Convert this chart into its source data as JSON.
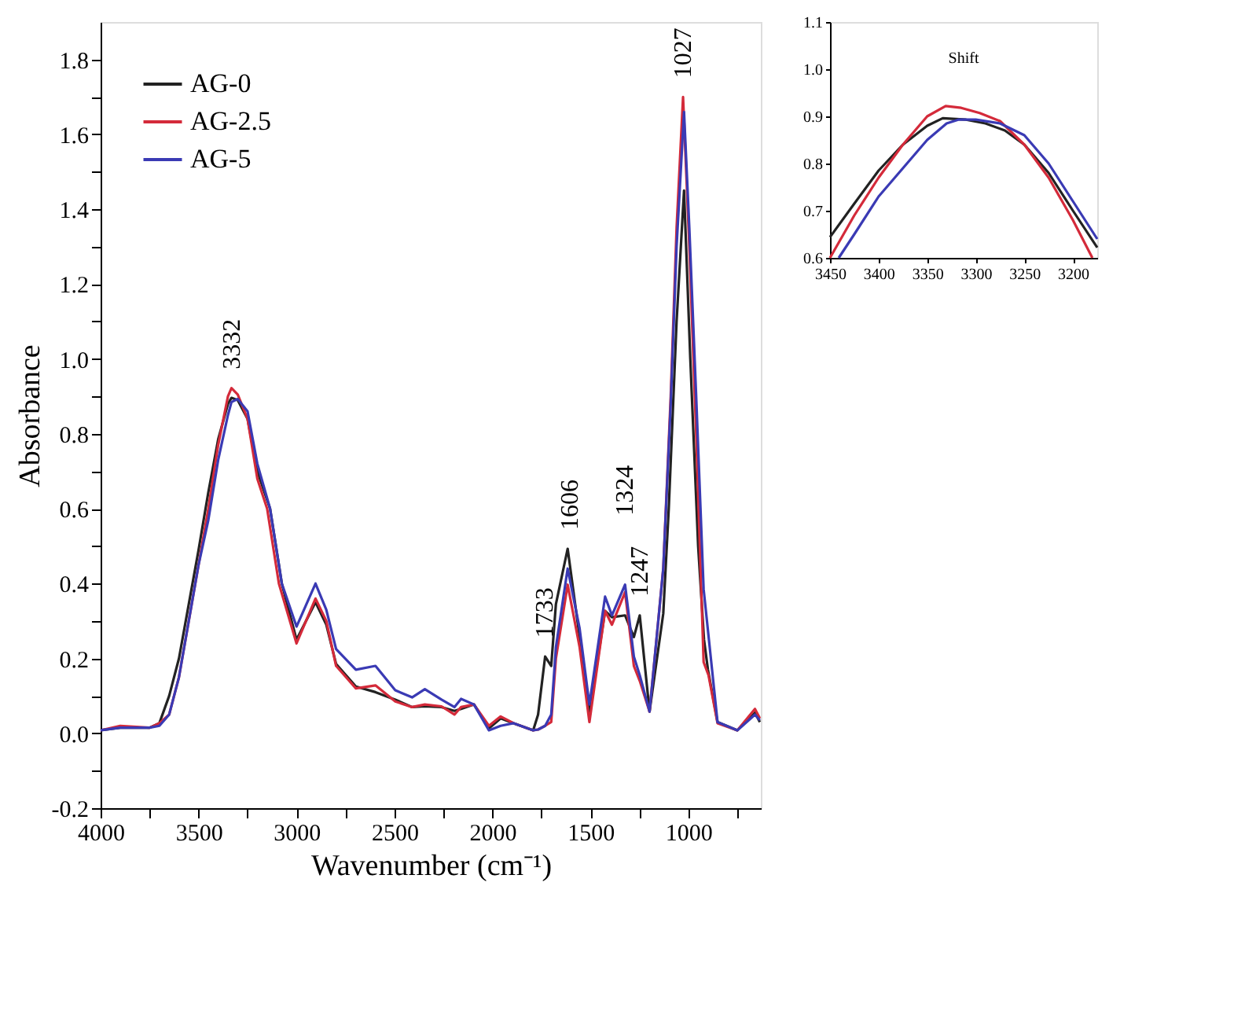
{
  "chart_data": [
    {
      "type": "line",
      "xlabel": "Wavenumber (cm⁻¹)",
      "ylabel": "Absorbance",
      "xlim": [
        4000,
        630
      ],
      "ylim": [
        -0.2,
        1.9
      ],
      "xticks": [
        4000,
        {
          "value": 3750,
          "label": null
        },
        3500,
        {
          "value": 3250,
          "label": null
        },
        3000,
        {
          "value": 2750,
          "label": null
        },
        2500,
        {
          "value": 2250,
          "label": null
        },
        2000,
        {
          "value": 1750,
          "label": null
        },
        1500,
        {
          "value": 1250,
          "label": null
        },
        1000,
        {
          "value": 750,
          "label": null
        }
      ],
      "yticks": [
        -0.2,
        {
          "value": -0.1,
          "label": null
        },
        {
          "value": 0,
          "label": "0.0"
        },
        {
          "value": 0.1,
          "label": null
        },
        0.2,
        {
          "value": 0.3,
          "label": null
        },
        0.4,
        {
          "value": 0.5,
          "label": null
        },
        0.6,
        {
          "value": 0.7,
          "label": null
        },
        0.8,
        {
          "value": 0.9,
          "label": null
        },
        {
          "value": 1,
          "label": "1.0"
        },
        {
          "value": 1.1,
          "label": null
        },
        1.2,
        {
          "value": 1.3,
          "label": null
        },
        1.4,
        {
          "value": 1.5,
          "label": null
        },
        1.6,
        {
          "value": 1.7,
          "label": null
        },
        1.8
      ],
      "legend": "top left",
      "grid": false,
      "line_style": "solid",
      "marker": "none",
      "series": [
        {
          "name": "AG-0",
          "color": "#222222",
          "x": [
            4000,
            3900,
            3750,
            3700,
            3650,
            3600,
            3500,
            3450,
            3400,
            3350,
            3332,
            3300,
            3250,
            3200,
            3135,
            3075,
            3000,
            2903,
            2848,
            2798,
            2697,
            2597,
            2496,
            2410,
            2345,
            2260,
            2194,
            2160,
            2094,
            2018,
            1958,
            1892,
            1792,
            1767,
            1731,
            1700,
            1676,
            1616,
            1555,
            1505,
            1425,
            1390,
            1323,
            1278,
            1248,
            1198,
            1128,
            1100,
            1060,
            1022,
            990,
            950,
            920,
            900,
            851,
            750,
            660,
            635
          ],
          "values": [
            0.008,
            0.015,
            0.015,
            0.027,
            0.1,
            0.2,
            0.49,
            0.644,
            0.785,
            0.88,
            0.896,
            0.89,
            0.84,
            0.7,
            0.6,
            0.4,
            0.25,
            0.35,
            0.29,
            0.185,
            0.125,
            0.11,
            0.09,
            0.07,
            0.072,
            0.07,
            0.06,
            0.065,
            0.077,
            0.013,
            0.04,
            0.027,
            0.008,
            0.05,
            0.205,
            0.18,
            0.345,
            0.493,
            0.257,
            0.05,
            0.327,
            0.31,
            0.315,
            0.257,
            0.315,
            0.058,
            0.32,
            0.6,
            1.1,
            1.45,
            1.0,
            0.5,
            0.25,
            0.17,
            0.03,
            0.008,
            0.055,
            0.03
          ]
        },
        {
          "name": "AG-2.5",
          "color": "#d42a3a",
          "x": [
            4000,
            3900,
            3750,
            3700,
            3650,
            3600,
            3500,
            3450,
            3400,
            3350,
            3332,
            3300,
            3250,
            3200,
            3150,
            3090,
            3000,
            2903,
            2848,
            2798,
            2697,
            2597,
            2496,
            2410,
            2345,
            2260,
            2194,
            2160,
            2094,
            2018,
            1958,
            1892,
            1792,
            1767,
            1731,
            1700,
            1676,
            1616,
            1555,
            1505,
            1425,
            1390,
            1323,
            1278,
            1248,
            1198,
            1128,
            1090,
            1060,
            1027,
            995,
            960,
            922,
            897,
            851,
            750,
            660,
            635
          ],
          "values": [
            0.008,
            0.02,
            0.015,
            0.027,
            0.05,
            0.15,
            0.45,
            0.6,
            0.77,
            0.9,
            0.922,
            0.905,
            0.84,
            0.68,
            0.6,
            0.4,
            0.24,
            0.36,
            0.3,
            0.18,
            0.12,
            0.128,
            0.085,
            0.07,
            0.077,
            0.072,
            0.05,
            0.07,
            0.077,
            0.02,
            0.045,
            0.027,
            0.008,
            0.01,
            0.02,
            0.03,
            0.2,
            0.397,
            0.23,
            0.03,
            0.327,
            0.29,
            0.377,
            0.18,
            0.14,
            0.058,
            0.44,
            0.9,
            1.35,
            1.7,
            1.3,
            0.8,
            0.19,
            0.155,
            0.027,
            0.008,
            0.065,
            0.04
          ]
        },
        {
          "name": "AG-5",
          "color": "#3a3ab4",
          "x": [
            4000,
            3900,
            3750,
            3700,
            3650,
            3600,
            3500,
            3450,
            3400,
            3350,
            3332,
            3300,
            3250,
            3200,
            3135,
            3075,
            3000,
            2903,
            2848,
            2798,
            2697,
            2597,
            2496,
            2410,
            2345,
            2260,
            2194,
            2160,
            2094,
            2018,
            1958,
            1892,
            1792,
            1767,
            1731,
            1700,
            1676,
            1616,
            1555,
            1505,
            1425,
            1390,
            1323,
            1278,
            1248,
            1198,
            1128,
            1090,
            1060,
            1022,
            995,
            960,
            922,
            897,
            851,
            750,
            660,
            635
          ],
          "values": [
            0.008,
            0.015,
            0.015,
            0.02,
            0.05,
            0.15,
            0.45,
            0.57,
            0.73,
            0.85,
            0.885,
            0.893,
            0.86,
            0.72,
            0.6,
            0.4,
            0.285,
            0.4,
            0.33,
            0.225,
            0.17,
            0.18,
            0.115,
            0.096,
            0.118,
            0.09,
            0.07,
            0.092,
            0.077,
            0.008,
            0.02,
            0.027,
            0.008,
            0.01,
            0.02,
            0.05,
            0.23,
            0.44,
            0.28,
            0.077,
            0.365,
            0.315,
            0.397,
            0.205,
            0.155,
            0.058,
            0.44,
            0.88,
            1.3,
            1.66,
            1.35,
            0.9,
            0.385,
            0.26,
            0.03,
            0.008,
            0.05,
            0.035
          ]
        }
      ],
      "annotations": [
        {
          "text": "3332",
          "x": 3332,
          "y": 0.922
        },
        {
          "text": "1733",
          "x": 1733,
          "y": 0.205
        },
        {
          "text": "1606",
          "x": 1606,
          "y": 0.493
        },
        {
          "text": "1324",
          "x": 1324,
          "y": 0.397
        },
        {
          "text": "1247",
          "x": 1247,
          "y": 0.315
        },
        {
          "text": "1027",
          "x": 1027,
          "y": 1.7
        }
      ]
    },
    {
      "type": "line",
      "xlim": [
        3450,
        3175
      ],
      "ylim": [
        0.6,
        1.1
      ],
      "xticks": [
        3450,
        3400,
        3350,
        3300,
        3250,
        3200
      ],
      "yticks": [
        0.6,
        0.7,
        0.8,
        0.9,
        {
          "value": 1,
          "label": "1.0"
        },
        1.1
      ],
      "legend": false,
      "grid": false,
      "line_style": "solid",
      "marker": "none",
      "series": [
        {
          "color": "#222222",
          "x": [
            3450,
            3425,
            3400,
            3375,
            3350,
            3334,
            3310,
            3290,
            3270,
            3250,
            3225,
            3200,
            3175
          ],
          "values": [
            0.644,
            0.715,
            0.785,
            0.84,
            0.88,
            0.896,
            0.893,
            0.885,
            0.87,
            0.84,
            0.78,
            0.7,
            0.622
          ]
        },
        {
          "color": "#d42a3a",
          "x": [
            3450,
            3425,
            3400,
            3375,
            3350,
            3331,
            3315,
            3296,
            3275,
            3250,
            3225,
            3200,
            3180
          ],
          "values": [
            0.6,
            0.69,
            0.77,
            0.84,
            0.9,
            0.922,
            0.918,
            0.907,
            0.89,
            0.84,
            0.77,
            0.68,
            0.6
          ]
        },
        {
          "color": "#3a3ab4",
          "x": [
            3441,
            3425,
            3400,
            3375,
            3350,
            3330,
            3318,
            3300,
            3275,
            3250,
            3225,
            3200,
            3175
          ],
          "values": [
            0.6,
            0.65,
            0.73,
            0.79,
            0.85,
            0.885,
            0.893,
            0.893,
            0.885,
            0.86,
            0.8,
            0.72,
            0.64
          ]
        }
      ],
      "annotations": [
        "Shift"
      ]
    }
  ]
}
